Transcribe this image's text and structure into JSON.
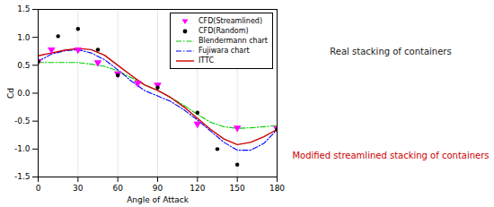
{
  "chart_data": {
    "type": "line",
    "xlabel": "Angle of Attack",
    "ylabel": "Cd",
    "xlim": [
      0,
      180
    ],
    "ylim": [
      -1.5,
      1.5
    ],
    "xticks": [
      0,
      30,
      60,
      90,
      120,
      150,
      180
    ],
    "yticks": [
      -1.5,
      {
        "value": -1,
        "label": "-1.0"
      },
      -0.5,
      {
        "value": 0,
        "label": "0.0"
      },
      0.5,
      {
        "value": 1,
        "label": "1.0"
      },
      1.5
    ],
    "grid": "x",
    "legend": "upper right",
    "series": [
      {
        "name": "CFD(Streamlined)",
        "type": "scatter",
        "marker": "triangle_down",
        "color": "#ff00ff",
        "x": [
          0,
          10,
          30,
          45,
          60,
          75,
          90,
          120,
          150,
          180
        ],
        "values": [
          0.57,
          0.78,
          0.78,
          0.55,
          0.35,
          0.18,
          0.15,
          -0.55,
          -0.62,
          -0.63
        ]
      },
      {
        "name": "CFD(Random)",
        "type": "scatter",
        "marker": "circle",
        "color": "#000000",
        "x": [
          0,
          15,
          30,
          45,
          60,
          90,
          120,
          135,
          150,
          180
        ],
        "values": [
          0.57,
          1.02,
          1.15,
          0.78,
          0.32,
          0.1,
          -0.35,
          -1.0,
          -1.28,
          -0.65
        ]
      },
      {
        "name": "Blendermann chart",
        "type": "line",
        "line_style": "dashdot",
        "color": "#00cc00",
        "x": [
          0,
          10,
          20,
          30,
          40,
          50,
          60,
          70,
          80,
          90,
          100,
          110,
          120,
          130,
          140,
          150,
          160,
          170,
          180
        ],
        "values": [
          0.55,
          0.55,
          0.55,
          0.55,
          0.52,
          0.48,
          0.4,
          0.28,
          0.15,
          0.05,
          -0.08,
          -0.22,
          -0.38,
          -0.52,
          -0.6,
          -0.63,
          -0.62,
          -0.6,
          -0.58
        ]
      },
      {
        "name": "Fujiwara chart",
        "type": "line",
        "line_style": "dashdot",
        "color": "#0000ff",
        "x": [
          0,
          10,
          20,
          30,
          40,
          50,
          60,
          70,
          80,
          90,
          100,
          110,
          120,
          130,
          140,
          150,
          160,
          170,
          180
        ],
        "values": [
          0.57,
          0.7,
          0.76,
          0.78,
          0.72,
          0.6,
          0.42,
          0.22,
          0.05,
          -0.05,
          -0.15,
          -0.3,
          -0.48,
          -0.68,
          -0.88,
          -1.02,
          -1.02,
          -0.9,
          -0.65
        ]
      },
      {
        "name": "ITTC",
        "type": "line",
        "line_style": "solid",
        "color": "#cc0000",
        "x": [
          0,
          10,
          20,
          30,
          40,
          50,
          60,
          70,
          80,
          90,
          100,
          110,
          120,
          130,
          140,
          150,
          160,
          170,
          180
        ],
        "values": [
          0.67,
          0.72,
          0.77,
          0.8,
          0.78,
          0.68,
          0.5,
          0.32,
          0.15,
          0.05,
          -0.08,
          -0.25,
          -0.45,
          -0.65,
          -0.82,
          -0.92,
          -0.88,
          -0.78,
          -0.65
        ]
      }
    ],
    "annotations": [
      {
        "text": "Real stacking of containers",
        "color": "#222222"
      },
      {
        "text": "Modified streamlined stacking of containers",
        "color": "#cc0000"
      }
    ]
  }
}
